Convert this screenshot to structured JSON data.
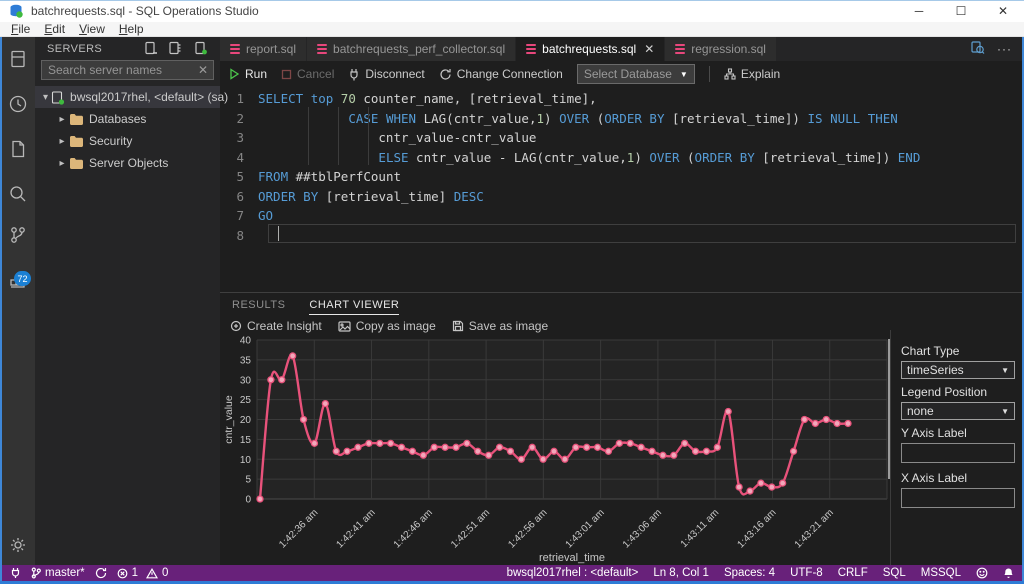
{
  "window": {
    "title": "batchrequests.sql - SQL Operations Studio",
    "controls": {
      "minimize": "─",
      "maximize": "☐",
      "close": "✕"
    }
  },
  "menu": {
    "items": [
      "File",
      "Edit",
      "View",
      "Help"
    ]
  },
  "activity_bar": {
    "scm_badge": "72"
  },
  "sidebar": {
    "header": "SERVERS",
    "search_placeholder": "Search server names",
    "search_clear": "✕",
    "tree": [
      {
        "label": "bwsql2017rhel, <default> (sa)",
        "type": "server",
        "twisty": "▾",
        "selected": true
      },
      {
        "label": "Databases",
        "type": "folder",
        "twisty": "▸",
        "selected": false
      },
      {
        "label": "Security",
        "type": "folder",
        "twisty": "▸",
        "selected": false
      },
      {
        "label": "Server Objects",
        "type": "folder",
        "twisty": "▸",
        "selected": false
      }
    ]
  },
  "tabs": [
    {
      "label": "report.sql",
      "active": false
    },
    {
      "label": "batchrequests_perf_collector.sql",
      "active": false
    },
    {
      "label": "batchrequests.sql",
      "active": true,
      "close": "✕"
    },
    {
      "label": "regression.sql",
      "active": false
    }
  ],
  "tabbar_actions": {
    "more": "···"
  },
  "toolbar": {
    "run": "Run",
    "cancel": "Cancel",
    "disconnect": "Disconnect",
    "change_connection": "Change Connection",
    "select_database": "Select Database",
    "explain": "Explain",
    "caret": "▼"
  },
  "editor": {
    "lines": [
      {
        "num": "1",
        "tokens": [
          [
            "k",
            "SELECT"
          ],
          [
            "d",
            " "
          ],
          [
            "k",
            "top"
          ],
          [
            "d",
            " "
          ],
          [
            "n",
            "70"
          ],
          [
            "d",
            " counter_name, [retrieval_time],"
          ]
        ]
      },
      {
        "num": "2",
        "tokens": [
          [
            "d",
            "            "
          ],
          [
            "k",
            "CASE"
          ],
          [
            "d",
            " "
          ],
          [
            "k",
            "WHEN"
          ],
          [
            "d",
            " LAG(cntr_value,"
          ],
          [
            "n",
            "1"
          ],
          [
            "d",
            ") "
          ],
          [
            "k",
            "OVER"
          ],
          [
            "d",
            " ("
          ],
          [
            "k",
            "ORDER"
          ],
          [
            "d",
            " "
          ],
          [
            "k",
            "BY"
          ],
          [
            "d",
            " [retrieval_time]) "
          ],
          [
            "k",
            "IS"
          ],
          [
            "d",
            " "
          ],
          [
            "k",
            "NULL"
          ],
          [
            "d",
            " "
          ],
          [
            "k",
            "THEN"
          ]
        ]
      },
      {
        "num": "3",
        "tokens": [
          [
            "d",
            "                cntr_value-cntr_value"
          ]
        ]
      },
      {
        "num": "4",
        "tokens": [
          [
            "d",
            "                "
          ],
          [
            "k",
            "ELSE"
          ],
          [
            "d",
            " cntr_value - LAG(cntr_value,"
          ],
          [
            "n",
            "1"
          ],
          [
            "d",
            ") "
          ],
          [
            "k",
            "OVER"
          ],
          [
            "d",
            " ("
          ],
          [
            "k",
            "ORDER"
          ],
          [
            "d",
            " "
          ],
          [
            "k",
            "BY"
          ],
          [
            "d",
            " [retrieval_time]) "
          ],
          [
            "k",
            "END"
          ]
        ]
      },
      {
        "num": "5",
        "tokens": [
          [
            "k",
            "FROM"
          ],
          [
            "d",
            " ##tblPerfCount"
          ]
        ]
      },
      {
        "num": "6",
        "tokens": [
          [
            "k",
            "ORDER"
          ],
          [
            "d",
            " "
          ],
          [
            "k",
            "BY"
          ],
          [
            "d",
            " [retrieval_time] "
          ],
          [
            "k",
            "DESC"
          ]
        ]
      },
      {
        "num": "7",
        "tokens": [
          [
            "k",
            "GO"
          ]
        ]
      },
      {
        "num": "8",
        "tokens": []
      }
    ]
  },
  "panel": {
    "tabs": [
      {
        "label": "RESULTS",
        "active": false
      },
      {
        "label": "CHART VIEWER",
        "active": true
      }
    ],
    "actions": [
      "Create Insight",
      "Copy as image",
      "Save as image"
    ]
  },
  "chart_data": {
    "type": "line",
    "title": "",
    "xlabel": "retrieval_time",
    "ylabel": "cntr_value",
    "ylim": [
      0,
      40
    ],
    "yticks": [
      0,
      5,
      10,
      15,
      20,
      25,
      30,
      35,
      40
    ],
    "x_tick_labels": [
      "1:42:36 am",
      "1:42:41 am",
      "1:42:46 am",
      "1:42:51 am",
      "1:42:56 am",
      "1:43:01 am",
      "1:43:06 am",
      "1:43:11 am",
      "1:43:16 am",
      "1:43:21 am"
    ],
    "grid": true,
    "legend_position": "none",
    "series": [
      {
        "name": "cntr_value",
        "color": "#e8527b",
        "point_fill": "#f2a7ba",
        "values": [
          0,
          30,
          30,
          36,
          20,
          14,
          24,
          12,
          12,
          13,
          14,
          14,
          14,
          13,
          12,
          11,
          13,
          13,
          13,
          14,
          12,
          11,
          13,
          12,
          10,
          13,
          10,
          12,
          10,
          13,
          13,
          13,
          12,
          14,
          14,
          13,
          12,
          11,
          11,
          14,
          12,
          12,
          13,
          22,
          3,
          2,
          4,
          3,
          4,
          12,
          20,
          19,
          20,
          19,
          19
        ]
      }
    ]
  },
  "chart_options": {
    "chart_type_label": "Chart Type",
    "chart_type_value": "timeSeries",
    "legend_position_label": "Legend Position",
    "legend_position_value": "none",
    "y_axis_label": "Y Axis Label",
    "x_axis_label": "X Axis Label",
    "y_axis_value": "",
    "x_axis_value": "",
    "caret": "▼"
  },
  "status_bar": {
    "branch": "master*",
    "errors": "1",
    "warnings": "0",
    "connection": "bwsql2017rhel : <default>",
    "cursor": "Ln 8, Col 1",
    "indent": "Spaces: 4",
    "encoding": "UTF-8",
    "eol": "CRLF",
    "language": "SQL",
    "provider": "MSSQL"
  },
  "colors": {
    "accent_line": "#e8527b",
    "keyword": "#569cd6",
    "number": "#b5cea8",
    "statusbar": "#68217a",
    "badge": "#1b80d4",
    "tab_icon": "#e8477c",
    "grid": "#3a3a3a",
    "tick_text": "#c8c8c8"
  }
}
